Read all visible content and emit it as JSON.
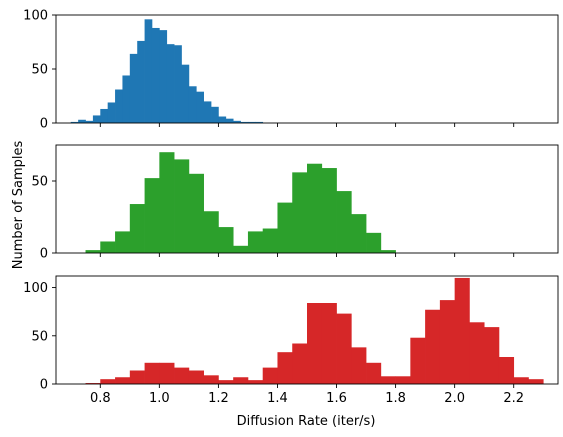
{
  "chart_data": [
    {
      "type": "bar",
      "panel": "top",
      "color": "#1f77b4",
      "ylim": [
        0,
        100
      ],
      "yticks": [
        0,
        50,
        100
      ],
      "bin_width": 0.025,
      "bins_start": [
        0.7,
        0.725,
        0.75,
        0.775,
        0.8,
        0.825,
        0.85,
        0.875,
        0.9,
        0.925,
        0.95,
        0.975,
        1.0,
        1.025,
        1.05,
        1.075,
        1.1,
        1.125,
        1.15,
        1.175,
        1.2,
        1.225,
        1.25,
        1.275,
        1.3,
        1.325
      ],
      "values": [
        1,
        3,
        2,
        7,
        13,
        19,
        31,
        44,
        64,
        76,
        96,
        88,
        86,
        73,
        72,
        54,
        34,
        29,
        20,
        15,
        6,
        4,
        2,
        1,
        1,
        1
      ]
    },
    {
      "type": "bar",
      "panel": "middle",
      "color": "#2ca02c",
      "ylim": [
        0,
        75
      ],
      "yticks": [
        0,
        50
      ],
      "bin_width": 0.05,
      "bins_start": [
        0.75,
        0.8,
        0.85,
        0.9,
        0.95,
        1.0,
        1.05,
        1.1,
        1.15,
        1.2,
        1.25,
        1.3,
        1.35,
        1.4,
        1.45,
        1.5,
        1.55,
        1.6,
        1.65,
        1.7,
        1.75
      ],
      "values": [
        2,
        8,
        15,
        34,
        52,
        70,
        65,
        55,
        29,
        18,
        5,
        15,
        17,
        35,
        56,
        62,
        59,
        43,
        27,
        14,
        2
      ]
    },
    {
      "type": "bar",
      "panel": "bottom",
      "color": "#d62728",
      "ylim": [
        0,
        112
      ],
      "yticks": [
        0,
        50,
        100
      ],
      "xlim": [
        0.65,
        2.35
      ],
      "xticks": [
        0.8,
        1.0,
        1.2,
        1.4,
        1.6,
        1.8,
        2.0,
        2.2
      ],
      "xtick_labels": [
        "0.8",
        "1.0",
        "1.2",
        "1.4",
        "1.6",
        "1.8",
        "2.0",
        "2.2"
      ],
      "xlabel": "Diffusion Rate (iter/s)",
      "bin_width": 0.05,
      "bins_start": [
        0.75,
        0.8,
        0.85,
        0.9,
        0.95,
        1.0,
        1.05,
        1.1,
        1.15,
        1.2,
        1.25,
        1.3,
        1.35,
        1.4,
        1.45,
        1.5,
        1.55,
        1.6,
        1.65,
        1.7,
        1.75,
        1.8,
        1.85,
        1.9,
        1.95,
        2.0,
        2.05,
        2.1,
        2.15,
        2.2,
        2.25
      ],
      "values": [
        1,
        5,
        7,
        14,
        22,
        22,
        17,
        14,
        9,
        4,
        7,
        4,
        17,
        33,
        42,
        84,
        84,
        73,
        38,
        22,
        8,
        8,
        48,
        77,
        87,
        110,
        64,
        59,
        28,
        7,
        5
      ]
    }
  ],
  "ylabel": "Number of Samples"
}
